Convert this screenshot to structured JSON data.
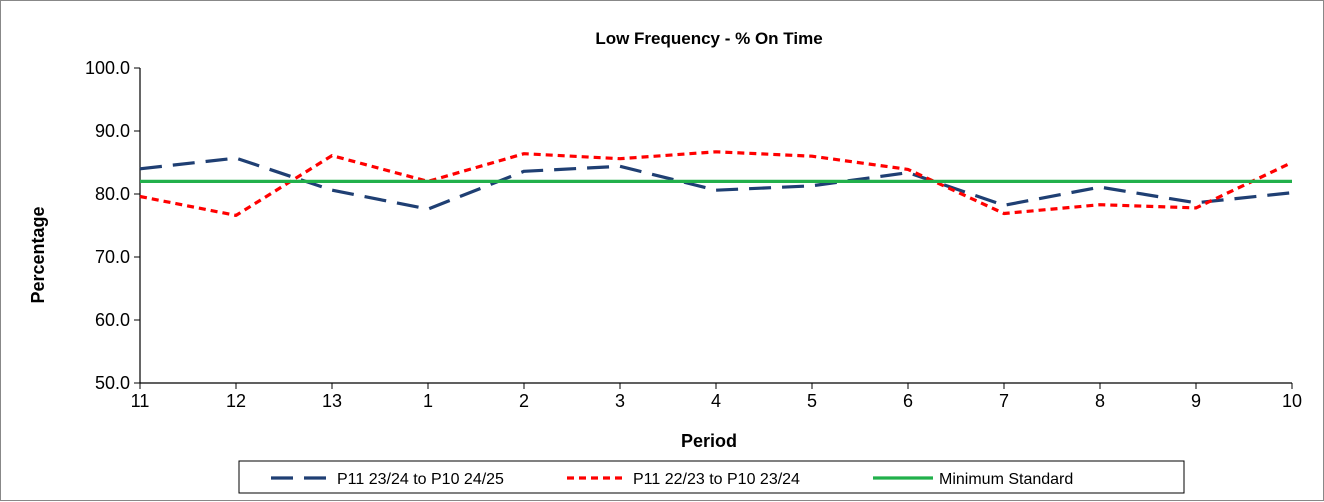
{
  "chart_data": {
    "type": "line",
    "title": "Low Frequency - % On Time",
    "xlabel": "Period",
    "ylabel": "Percentage",
    "categories": [
      "11",
      "12",
      "13",
      "1",
      "2",
      "3",
      "4",
      "5",
      "6",
      "7",
      "8",
      "9",
      "10"
    ],
    "ylim": [
      50,
      100
    ],
    "yticks": [
      "50.0",
      "60.0",
      "70.0",
      "80.0",
      "90.0",
      "100.0"
    ],
    "grid": false,
    "legend_position": "bottom",
    "series": [
      {
        "name": "P11 23/24 to P10 24/25",
        "color": "#1F3F73",
        "dash": "long-dash",
        "values": [
          84.0,
          85.7,
          80.6,
          77.6,
          83.6,
          84.4,
          80.6,
          81.3,
          83.4,
          78.2,
          81.1,
          78.6,
          80.2
        ]
      },
      {
        "name": "P11 22/23 to P10 23/24",
        "color": "#FF0000",
        "dash": "short-dash",
        "values": [
          79.6,
          76.6,
          86.1,
          82.0,
          86.4,
          85.6,
          86.7,
          86.0,
          83.9,
          76.9,
          78.3,
          77.8,
          85.0
        ]
      },
      {
        "name": "Minimum Standard",
        "color": "#22B04B",
        "dash": "solid",
        "values": [
          82,
          82,
          82,
          82,
          82,
          82,
          82,
          82,
          82,
          82,
          82,
          82,
          82
        ]
      }
    ]
  }
}
